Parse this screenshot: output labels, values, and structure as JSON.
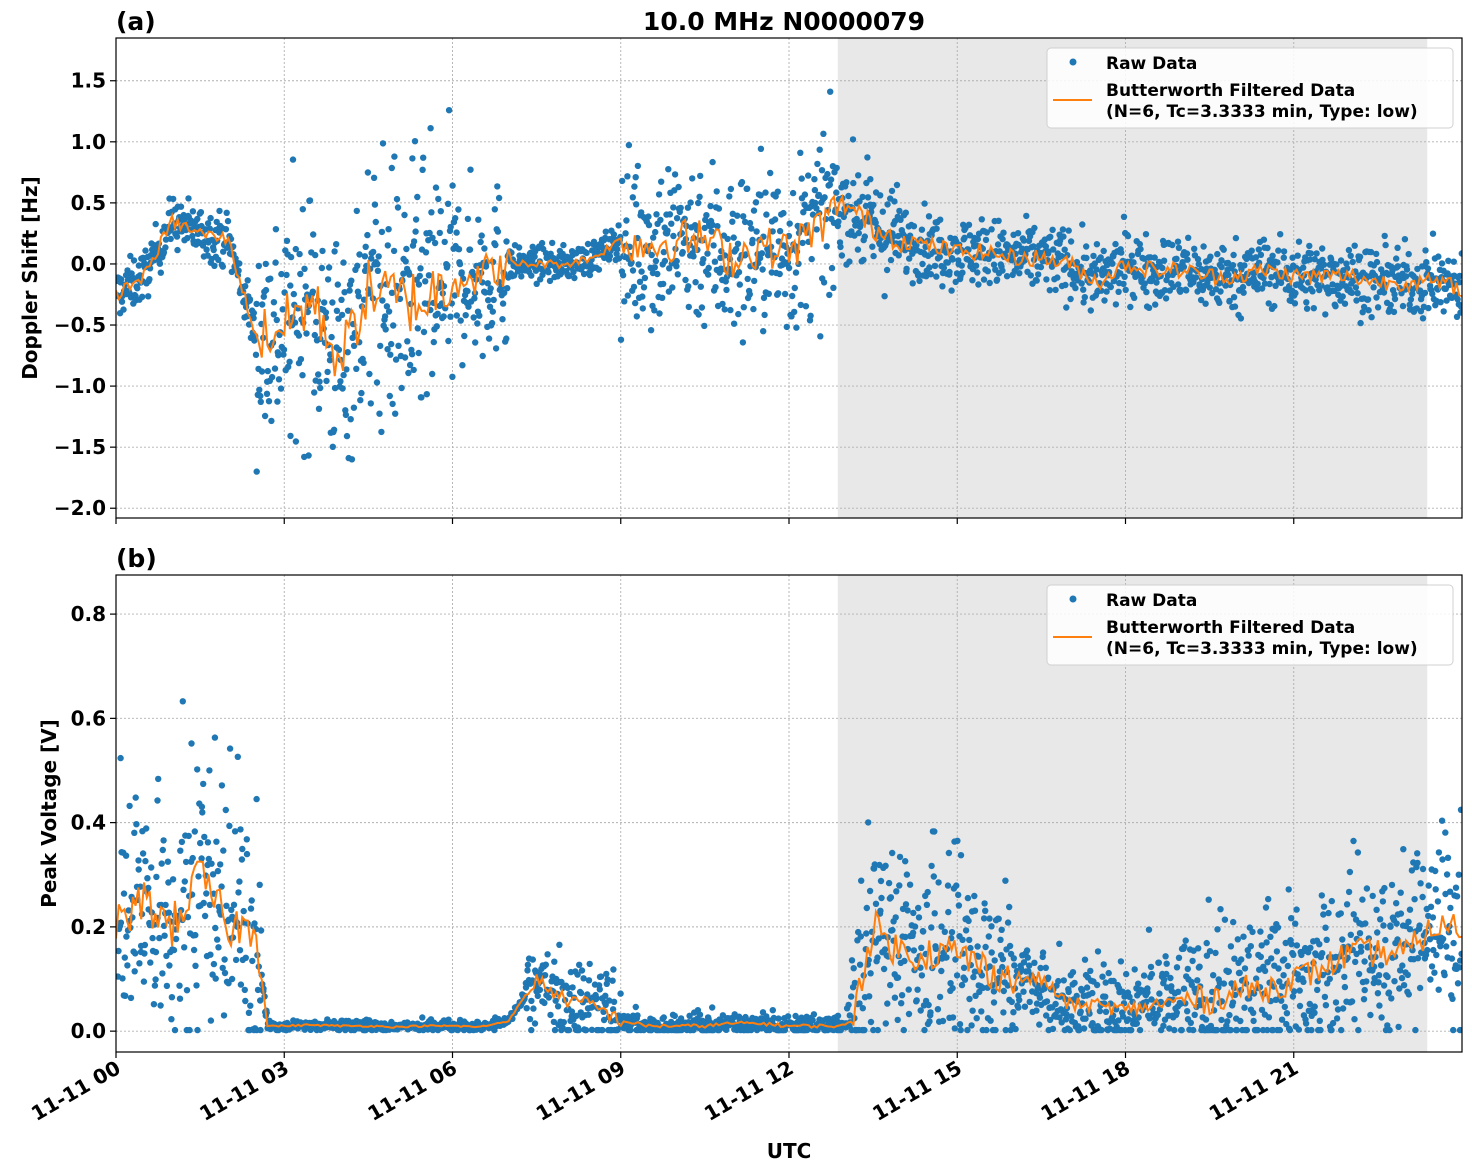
{
  "title": "10.0 MHz N0000079",
  "colors": {
    "raw": "#1f77b4",
    "filtered": "#ff7f0e",
    "shade": "#e8e8e8"
  },
  "xlabel": "UTC",
  "x_tick_labels": [
    "11-11 00",
    "11-11 03",
    "11-11 06",
    "11-11 09",
    "11-11 12",
    "11-11 15",
    "11-11 18",
    "11-11 21"
  ],
  "chart_data": [
    {
      "type": "scatter",
      "panel_label": "(a)",
      "ylabel": "Doppler Shift [Hz]",
      "x_unit": "hours UTC on 11-11",
      "xlim": [
        0,
        24
      ],
      "ylim": [
        -2.08,
        1.85
      ],
      "y_ticks": [
        -2.0,
        -1.5,
        -1.0,
        -0.5,
        0.0,
        0.5,
        1.0,
        1.5
      ],
      "y_tick_labels": [
        "−2.0",
        "−1.5",
        "−1.0",
        "−0.5",
        "0.0",
        "0.5",
        "1.0",
        "1.5"
      ],
      "grid": true,
      "shaded_region_hours": [
        12.87,
        23.38
      ],
      "legend": {
        "placement": "upper right",
        "entries": [
          "Raw Data",
          "Butterworth Filtered Data",
          "(N=6, Tc=3.3333 min, Type: low)"
        ]
      },
      "filtered": {
        "x": [
          0,
          0.5,
          1,
          1.5,
          2,
          2.5,
          3,
          3.5,
          4,
          4.5,
          5,
          5.5,
          6,
          6.5,
          7,
          7.5,
          8,
          8.5,
          9,
          9.5,
          10,
          10.5,
          11,
          11.5,
          12,
          12.5,
          13,
          13.5,
          14,
          14.5,
          15,
          15.5,
          16,
          16.5,
          17,
          17.5,
          18,
          18.5,
          19,
          19.5,
          20,
          20.5,
          21,
          21.5,
          22,
          22.5,
          23,
          23.5,
          24
        ],
        "y": [
          -0.25,
          -0.1,
          0.35,
          0.25,
          0.2,
          -0.6,
          -0.5,
          -0.3,
          -0.8,
          -0.2,
          -0.3,
          -0.3,
          -0.1,
          -0.1,
          0.0,
          0.0,
          0.0,
          0.05,
          0.2,
          0.15,
          0.2,
          0.2,
          0.05,
          0.15,
          0.1,
          0.3,
          0.5,
          0.3,
          0.2,
          0.15,
          0.1,
          0.1,
          0.05,
          0.05,
          0.0,
          -0.15,
          0.0,
          -0.05,
          -0.05,
          -0.1,
          -0.1,
          -0.05,
          -0.1,
          -0.1,
          -0.1,
          -0.15,
          -0.15,
          -0.15,
          -0.2
        ]
      },
      "raw_spread": [
        {
          "from": 0,
          "to": 2.5,
          "half_range": 0.15
        },
        {
          "from": 2.5,
          "to": 4.5,
          "half_range": 0.7
        },
        {
          "from": 4.5,
          "to": 6,
          "half_range": 0.8
        },
        {
          "from": 6,
          "to": 7,
          "half_range": 0.5
        },
        {
          "from": 7,
          "to": 9,
          "half_range": 0.1
        },
        {
          "from": 9,
          "to": 12.8,
          "half_range": 0.5
        },
        {
          "from": 12.8,
          "to": 14,
          "half_range": 0.3
        },
        {
          "from": 14,
          "to": 24,
          "half_range": 0.2
        }
      ]
    },
    {
      "type": "scatter",
      "panel_label": "(b)",
      "ylabel": "Peak Voltage [V]",
      "x_unit": "hours UTC on 11-11",
      "xlim": [
        0,
        24
      ],
      "ylim": [
        -0.04,
        0.875
      ],
      "y_ticks": [
        0.0,
        0.2,
        0.4,
        0.6,
        0.8
      ],
      "y_tick_labels": [
        "0.0",
        "0.2",
        "0.4",
        "0.6",
        "0.8"
      ],
      "grid": true,
      "shaded_region_hours": [
        12.87,
        23.38
      ],
      "legend": {
        "placement": "upper right",
        "entries": [
          "Raw Data",
          "Butterworth Filtered Data",
          "(N=6, Tc=3.3333 min, Type: low)"
        ]
      },
      "filtered": {
        "x": [
          0,
          0.5,
          1,
          1.5,
          2,
          2.5,
          2.7,
          3,
          3.5,
          4,
          4.5,
          5,
          5.5,
          6,
          6.5,
          7,
          7.5,
          8,
          8.5,
          9,
          9.5,
          10,
          10.5,
          11,
          11.5,
          12,
          12.5,
          13,
          13.1,
          13.5,
          14,
          14.5,
          15,
          15.5,
          16,
          16.5,
          17,
          17.5,
          18,
          18.5,
          19,
          19.5,
          20,
          20.5,
          21,
          21.5,
          22,
          22.5,
          23,
          23.5,
          24
        ],
        "y": [
          0.2,
          0.25,
          0.2,
          0.3,
          0.2,
          0.2,
          0.01,
          0.01,
          0.012,
          0.01,
          0.01,
          0.008,
          0.01,
          0.01,
          0.008,
          0.02,
          0.1,
          0.06,
          0.05,
          0.02,
          0.01,
          0.01,
          0.01,
          0.015,
          0.015,
          0.01,
          0.01,
          0.01,
          0.02,
          0.2,
          0.15,
          0.15,
          0.15,
          0.12,
          0.1,
          0.1,
          0.05,
          0.05,
          0.04,
          0.05,
          0.06,
          0.06,
          0.08,
          0.08,
          0.1,
          0.12,
          0.15,
          0.15,
          0.15,
          0.2,
          0.2
        ]
      },
      "raw_spread": [
        {
          "from": 0,
          "to": 2.6,
          "half_range": 0.12
        },
        {
          "from": 2.6,
          "to": 7.3,
          "half_range": 0.005
        },
        {
          "from": 7.3,
          "to": 9,
          "half_range": 0.04
        },
        {
          "from": 9,
          "to": 13.1,
          "half_range": 0.01
        },
        {
          "from": 13.1,
          "to": 16,
          "half_range": 0.1
        },
        {
          "from": 16,
          "to": 19,
          "half_range": 0.04
        },
        {
          "from": 19,
          "to": 24,
          "half_range": 0.08
        }
      ]
    }
  ]
}
